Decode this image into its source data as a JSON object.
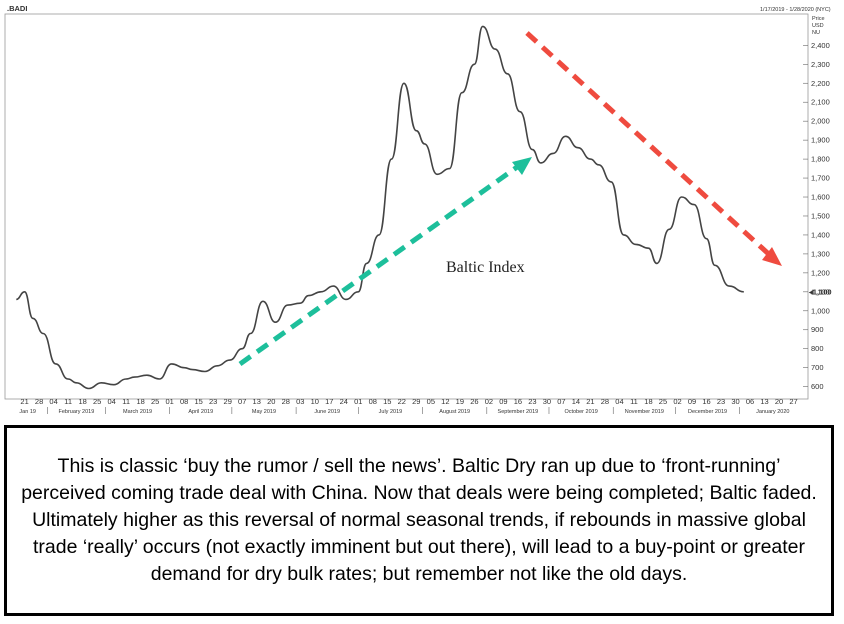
{
  "chart_data": {
    "type": "line",
    "symbol": ".BADI",
    "date_range_label": "1/17/2019 - 1/28/2020 (NYC)",
    "price_label": "Price",
    "currency_label": "USD",
    "unit_label": "NU",
    "series_label": "Baltic Index",
    "last_value_label": "1,100",
    "ylim": [
      540,
      2560
    ],
    "y_ticks": [
      "600",
      "700",
      "800",
      "900",
      "1,000",
      "1,100",
      "1,200",
      "1,300",
      "1,400",
      "1,500",
      "1,600",
      "1,700",
      "1,800",
      "1,900",
      "2,000",
      "2,100",
      "2,200",
      "2,300",
      "2,400"
    ],
    "x_day_labels": [
      "21",
      "28",
      "04",
      "11",
      "18",
      "25",
      "04",
      "11",
      "18",
      "25",
      "01",
      "08",
      "15",
      "23",
      "29",
      "07",
      "13",
      "20",
      "28",
      "03",
      "10",
      "17",
      "24",
      "01",
      "08",
      "15",
      "22",
      "29",
      "05",
      "12",
      "19",
      "26",
      "02",
      "09",
      "16",
      "23",
      "30",
      "07",
      "14",
      "21",
      "28",
      "04",
      "11",
      "18",
      "25",
      "02",
      "09",
      "16",
      "23",
      "30",
      "06",
      "13",
      "20",
      "27"
    ],
    "x_month_labels": [
      "Jan 19",
      "February 2019",
      "March 2019",
      "April 2019",
      "May 2019",
      "June 2019",
      "July 2019",
      "August 2019",
      "September 2019",
      "October 2019",
      "November 2019",
      "December 2019",
      "January 2020"
    ],
    "x_week_index": [
      0,
      1.5,
      2.5,
      3.5,
      5,
      6,
      7,
      8.5,
      9.5,
      11,
      12.5,
      13.5,
      15,
      16,
      17,
      18,
      19,
      20,
      21,
      22,
      23,
      24,
      25,
      26,
      26.5,
      27,
      28.5,
      29,
      30,
      31,
      31.5,
      32,
      33,
      34,
      34.5,
      35,
      36,
      36.5,
      37,
      37.5,
      38,
      39,
      40,
      41,
      42,
      42.5,
      43,
      44,
      44.5,
      45,
      45.5,
      46,
      47,
      48,
      49,
      50,
      51,
      52,
      53,
      53.5,
      54,
      55,
      56,
      56.5,
      57,
      58,
      58.5,
      59,
      60,
      61,
      61.5,
      62,
      63,
      64,
      64.5,
      65,
      66,
      67,
      67.5,
      68,
      69,
      70,
      71,
      71.5,
      72,
      73,
      74,
      74.5,
      75,
      76,
      77,
      78,
      78.5,
      79,
      80,
      81,
      82,
      82.5,
      83,
      84,
      85,
      86,
      87,
      87.5,
      88,
      89,
      90,
      91,
      92,
      93,
      94,
      95,
      96,
      96.5,
      97,
      98,
      99,
      100,
      101,
      102,
      103,
      103.5,
      104,
      105,
      106,
      107,
      108,
      109,
      110,
      111,
      112,
      113,
      113.5,
      114,
      115,
      116,
      117,
      118,
      119,
      120,
      121,
      122,
      123,
      124,
      125,
      126,
      127,
      128,
      129,
      130,
      131,
      132,
      133,
      133.5,
      134,
      135,
      136,
      137,
      138,
      139,
      139.5,
      140,
      141,
      142,
      143,
      144,
      145,
      146,
      147,
      148,
      149,
      150,
      151,
      152,
      153,
      154,
      155,
      156,
      157,
      158,
      159,
      160,
      161,
      162,
      163,
      164,
      165,
      166,
      167,
      168,
      169,
      170,
      171,
      172,
      173,
      174,
      175,
      176,
      177,
      178,
      179,
      180,
      181,
      182,
      183,
      184,
      185,
      186,
      187,
      188,
      189,
      190,
      191,
      192,
      193,
      194,
      195,
      196,
      197,
      198,
      199,
      200,
      201,
      202,
      203,
      204,
      205,
      206,
      207,
      208,
      209,
      210,
      211,
      212,
      213,
      214,
      215,
      216,
      217,
      218,
      219,
      220,
      221,
      222,
      223,
      224,
      225,
      226,
      227,
      228,
      229,
      230,
      231,
      232,
      233,
      234,
      235,
      236,
      237,
      238,
      239,
      240,
      241,
      242,
      243,
      244,
      245,
      246,
      247,
      248,
      249,
      250,
      251,
      252,
      253,
      254,
      255,
      256,
      257,
      258,
      259,
      260,
      261,
      262,
      263,
      264,
      265,
      266,
      267,
      268,
      269,
      270,
      271,
      272,
      273,
      274,
      275,
      276,
      277,
      278,
      279,
      280,
      281,
      282,
      283,
      284,
      285,
      286,
      287,
      288,
      289,
      290,
      291,
      292,
      293,
      294,
      295,
      296,
      297,
      298,
      299,
      300
    ],
    "x": [
      "2019-01-17",
      "2019-01-21",
      "2019-01-25",
      "2019-01-30",
      "2019-02-05",
      "2019-02-11",
      "2019-02-15",
      "2019-02-21",
      "2019-02-27",
      "2019-03-05",
      "2019-03-11",
      "2019-03-15",
      "2019-03-21",
      "2019-03-27",
      "2019-04-02",
      "2019-04-08",
      "2019-04-12",
      "2019-04-18",
      "2019-04-24",
      "2019-04-30",
      "2019-05-06",
      "2019-05-10",
      "2019-05-16",
      "2019-05-22",
      "2019-05-28",
      "2019-06-03",
      "2019-06-07",
      "2019-06-13",
      "2019-06-19",
      "2019-06-25",
      "2019-07-01",
      "2019-07-05",
      "2019-07-11",
      "2019-07-17",
      "2019-07-23",
      "2019-07-29",
      "2019-08-02",
      "2019-08-08",
      "2019-08-14",
      "2019-08-20",
      "2019-08-26",
      "2019-08-30",
      "2019-09-05",
      "2019-09-11",
      "2019-09-17",
      "2019-09-23",
      "2019-09-27",
      "2019-10-03",
      "2019-10-09",
      "2019-10-15",
      "2019-10-21",
      "2019-10-25",
      "2019-10-31",
      "2019-11-06",
      "2019-11-12",
      "2019-11-18",
      "2019-11-22",
      "2019-11-28",
      "2019-12-04",
      "2019-12-10",
      "2019-12-16",
      "2019-12-20",
      "2019-12-27",
      "2020-01-03"
    ],
    "values": [
      1060,
      1100,
      960,
      880,
      720,
      640,
      620,
      590,
      620,
      610,
      640,
      650,
      660,
      640,
      720,
      700,
      690,
      680,
      710,
      740,
      800,
      880,
      1050,
      940,
      1030,
      1040,
      1080,
      1100,
      1130,
      1060,
      1100,
      1250,
      1400,
      1800,
      2200,
      1950,
      1880,
      1720,
      1750,
      2150,
      2300,
      2500,
      2380,
      2250,
      2050,
      1850,
      1780,
      1830,
      1920,
      1860,
      1800,
      1770,
      1680,
      1400,
      1350,
      1330,
      1250,
      1430,
      1600,
      1560,
      1380,
      1240,
      1130,
      1100
    ],
    "annotations": [
      {
        "text": "up-arrow",
        "color": "#1dbf9b"
      },
      {
        "text": "down-arrow",
        "color": "#ef4b3f"
      }
    ],
    "grid": false,
    "line_color": "#444444"
  },
  "caption": {
    "text": "This is classic ‘buy the rumor / sell the news’. Baltic Dry ran up due to ‘front-running’ perceived coming trade deal with China. Now that deals were being completed; Baltic faded. Ultimately higher as this reversal of normal seasonal trends, if rebounds in massive global trade ‘really’ occurs (not exactly imminent but out there), will lead to a buy-point or greater demand for dry bulk rates; but remember not like the old days."
  }
}
